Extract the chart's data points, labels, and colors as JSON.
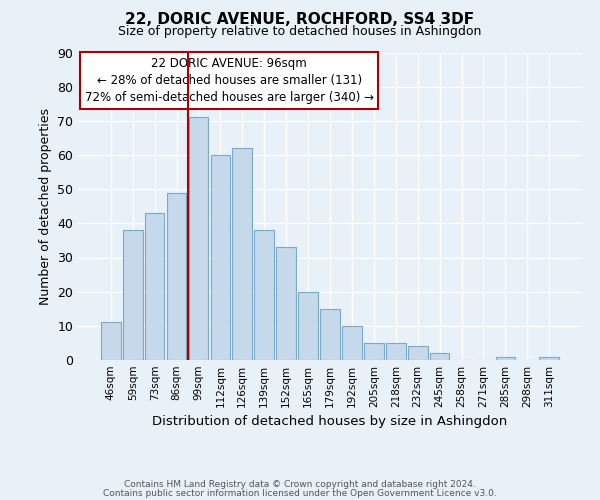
{
  "title": "22, DORIC AVENUE, ROCHFORD, SS4 3DF",
  "subtitle": "Size of property relative to detached houses in Ashingdon",
  "xlabel": "Distribution of detached houses by size in Ashingdon",
  "ylabel": "Number of detached properties",
  "bar_labels": [
    "46sqm",
    "59sqm",
    "73sqm",
    "86sqm",
    "99sqm",
    "112sqm",
    "126sqm",
    "139sqm",
    "152sqm",
    "165sqm",
    "179sqm",
    "192sqm",
    "205sqm",
    "218sqm",
    "232sqm",
    "245sqm",
    "258sqm",
    "271sqm",
    "285sqm",
    "298sqm",
    "311sqm"
  ],
  "bar_values": [
    11,
    38,
    43,
    49,
    71,
    60,
    62,
    38,
    33,
    20,
    15,
    10,
    5,
    5,
    4,
    2,
    0,
    0,
    1,
    0,
    1
  ],
  "bar_color": "#c5d9ea",
  "bar_edge_color": "#7aaac8",
  "background_color": "#e8f0f8",
  "plot_bg_color": "#e8f0f8",
  "grid_color": "#ffffff",
  "vline_color": "#aa0000",
  "annotation_title": "22 DORIC AVENUE: 96sqm",
  "annotation_line1": "← 28% of detached houses are smaller (131)",
  "annotation_line2": "72% of semi-detached houses are larger (340) →",
  "annotation_box_color": "#ffffff",
  "annotation_box_edge": "#aa0000",
  "ylim": [
    0,
    90
  ],
  "yticks": [
    0,
    10,
    20,
    30,
    40,
    50,
    60,
    70,
    80,
    90
  ],
  "footer1": "Contains HM Land Registry data © Crown copyright and database right 2024.",
  "footer2": "Contains public sector information licensed under the Open Government Licence v3.0."
}
